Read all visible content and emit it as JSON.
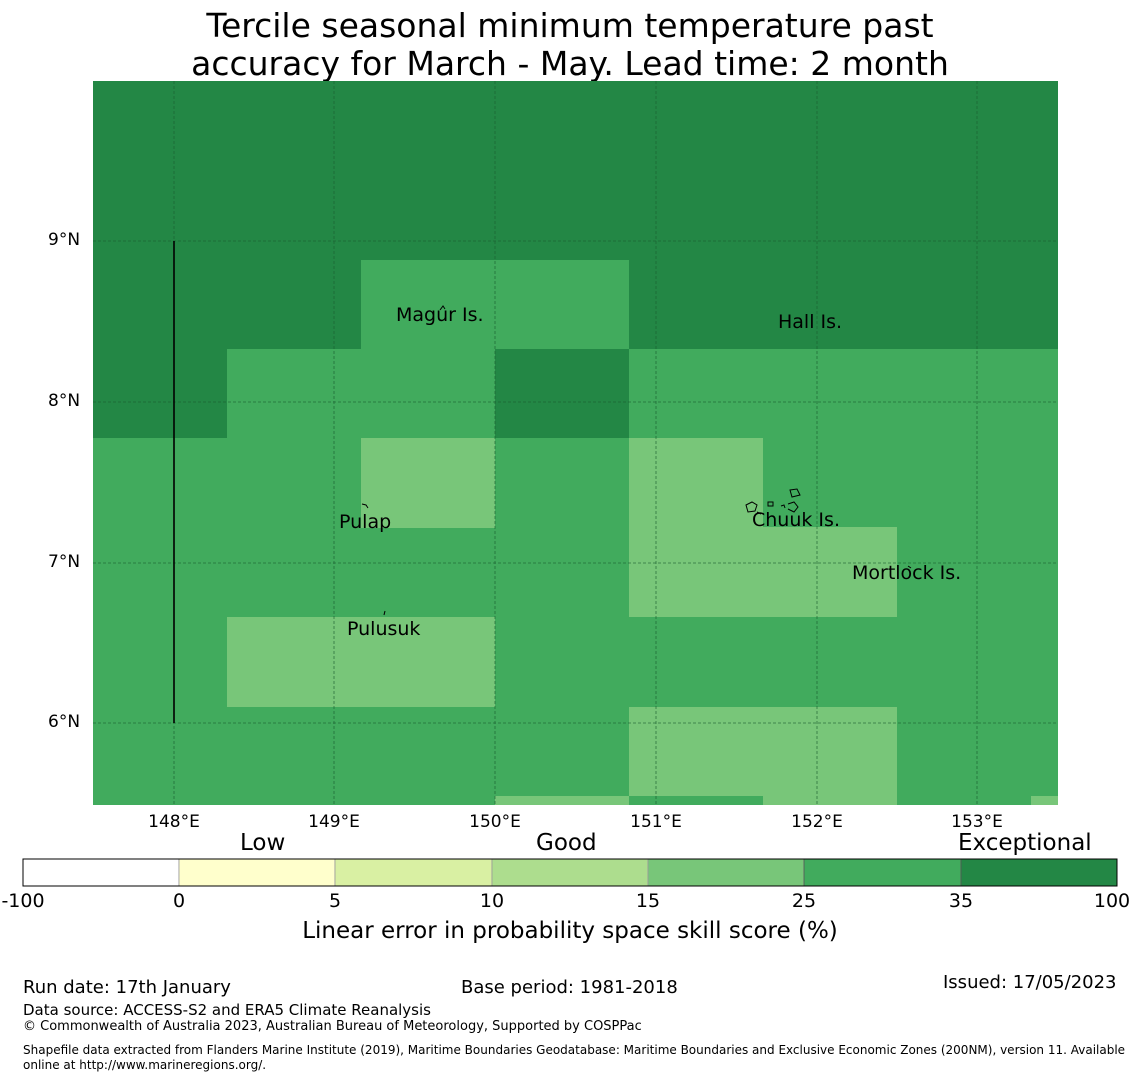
{
  "title_line1": "Tercile seasonal minimum temperature past",
  "title_line2": "accuracy for March - May. Lead time: 2 month",
  "map": {
    "lat_labels": [
      "9°N",
      "8°N",
      "7°N",
      "6°N"
    ],
    "lon_labels": [
      "148°E",
      "149°E",
      "150°E",
      "151°E",
      "152°E",
      "153°E"
    ],
    "places": [
      "Magur Is.",
      "Hall Is.",
      "Pulap",
      "Chuuk Is.",
      "Mortlock Is.",
      "Pulusuk"
    ],
    "colors": {
      "exceptional": "#238745",
      "band_25_35": "#41ab5d",
      "band_15_25": "#78c679",
      "band_10_15": "#addd8e",
      "band_5_10": "#d9f0a3",
      "band_0_5": "#ffffcc",
      "below_0": "#ffffff"
    }
  },
  "colorbar": {
    "categories": [
      "Low",
      "Good",
      "Exceptional"
    ],
    "ticks": [
      "-100",
      "0",
      "5",
      "10",
      "15",
      "25",
      "35",
      "100"
    ],
    "label": "Linear error in probability space skill score (%)"
  },
  "footer": {
    "run_date": "Run date: 17th January",
    "base_period": "Base period: 1981-2018",
    "issued": "Issued: 17/05/2023",
    "data_source": "Data source: ACCESS-S2 and ERA5 Climate Reanalysis",
    "copyright": "© Commonwealth of Australia 2023, Australian Bureau of Meteorology, Supported by COSPPac",
    "shapefile_line1": "Shapefile data extracted from Flanders Marine Institute (2019), Maritime Boundaries Geodatabase: Maritime Boundaries and Exclusive Economic Zones (200NM), version 11. Available",
    "shapefile_line2": "online at http://www.marineregions.org/."
  }
}
